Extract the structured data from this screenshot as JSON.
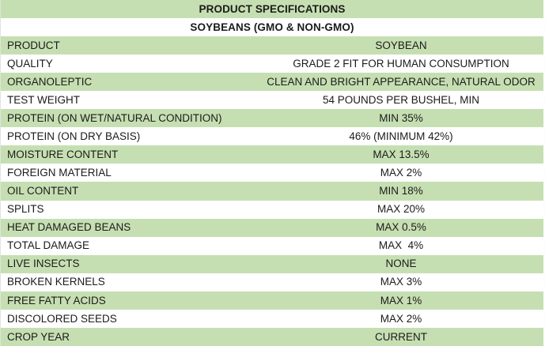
{
  "table": {
    "header": {
      "title": "PRODUCT SPECIFICATIONS",
      "subtitle": "SOYBEANS (GMO & NON-GMO)"
    },
    "colors": {
      "row_green": "#c6dfb2",
      "row_white": "#ffffff",
      "text": "#1b1b1b"
    },
    "rows": [
      {
        "label": "PRODUCT",
        "value": "SOYBEAN"
      },
      {
        "label": "QUALITY",
        "value": "GRADE 2 FIT FOR HUMAN CONSUMPTION"
      },
      {
        "label": "ORGANOLEPTIC",
        "value": "CLEAN AND BRIGHT APPEARANCE, NATURAL ODOR"
      },
      {
        "label": "TEST WEIGHT",
        "value": "54 POUNDS PER BUSHEL, MIN"
      },
      {
        "label": "PROTEIN (ON WET/NATURAL CONDITION)",
        "value": "MIN 35%"
      },
      {
        "label": "PROTEIN (ON DRY BASIS)",
        "value": "46% (MINIMUM 42%)"
      },
      {
        "label": "MOISTURE CONTENT",
        "value": "MAX 13.5%"
      },
      {
        "label": "FOREIGN MATERIAL",
        "value": "MAX 2%"
      },
      {
        "label": "OIL CONTENT",
        "value": "MIN 18%"
      },
      {
        "label": "SPLITS",
        "value": "MAX 20%"
      },
      {
        "label": "HEAT DAMAGED BEANS",
        "value": "MAX 0.5%"
      },
      {
        "label": "TOTAL DAMAGE",
        "value": "MAX  4%"
      },
      {
        "label": "LIVE INSECTS",
        "value": "NONE"
      },
      {
        "label": "BROKEN KERNELS",
        "value": "MAX 3%"
      },
      {
        "label": "FREE FATTY ACIDS",
        "value": "MAX 1%"
      },
      {
        "label": "DISCOLORED SEEDS",
        "value": "MAX 2%"
      },
      {
        "label": "CROP YEAR",
        "value": "CURRENT"
      }
    ]
  }
}
